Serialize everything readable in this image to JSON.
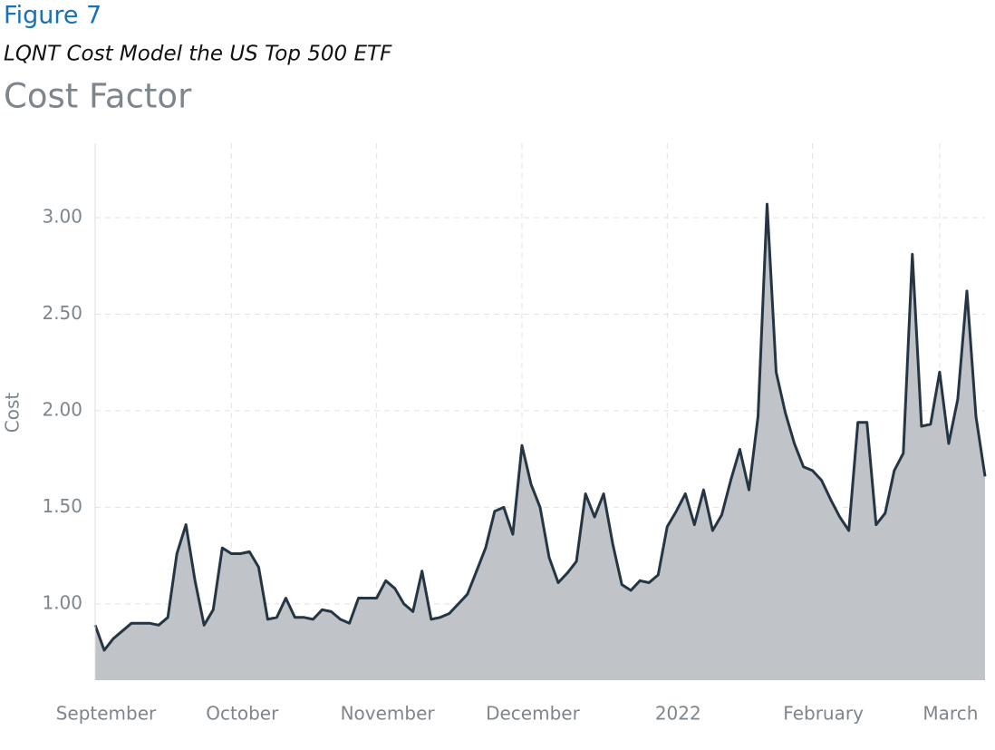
{
  "chart_data": {
    "type": "area",
    "figure_label": "Figure 7",
    "subtitle": "LQNT Cost Model the US Top 500 ETF",
    "title": "Cost Factor",
    "y_label": "Cost",
    "color": "#263544",
    "fill": "#c0c4c8",
    "grid": true,
    "categories": [
      "September",
      null,
      null,
      null,
      null,
      null,
      null,
      null,
      null,
      null,
      null,
      null,
      null,
      null,
      null,
      "October",
      null,
      null,
      null,
      null,
      null,
      null,
      null,
      null,
      null,
      null,
      null,
      null,
      null,
      null,
      null,
      "November",
      null,
      null,
      null,
      null,
      null,
      null,
      null,
      null,
      null,
      null,
      null,
      null,
      null,
      null,
      null,
      "December",
      null,
      null,
      null,
      null,
      null,
      null,
      null,
      null,
      null,
      null,
      null,
      null,
      null,
      null,
      null,
      "2022",
      null,
      null,
      null,
      null,
      null,
      null,
      null,
      null,
      null,
      null,
      null,
      null,
      null,
      null,
      null,
      "February",
      null,
      null,
      null,
      null,
      null,
      null,
      null,
      null,
      null,
      null,
      null,
      null,
      null,
      "March",
      null,
      null,
      null,
      null,
      null
    ],
    "values": [
      0.89,
      0.76,
      0.82,
      0.86,
      0.9,
      0.9,
      0.9,
      0.89,
      0.93,
      1.26,
      1.41,
      1.12,
      0.89,
      0.97,
      1.29,
      1.26,
      1.26,
      1.27,
      1.19,
      0.92,
      0.93,
      1.03,
      0.93,
      0.93,
      0.92,
      0.97,
      0.96,
      0.92,
      0.9,
      1.03,
      1.03,
      1.03,
      1.12,
      1.08,
      1.0,
      0.96,
      1.17,
      0.92,
      0.93,
      0.95,
      1.0,
      1.05,
      1.17,
      1.29,
      1.48,
      1.5,
      1.36,
      1.82,
      1.62,
      1.5,
      1.24,
      1.11,
      1.16,
      1.22,
      1.57,
      1.45,
      1.57,
      1.31,
      1.1,
      1.07,
      1.12,
      1.11,
      1.15,
      1.4,
      1.48,
      1.57,
      1.41,
      1.59,
      1.38,
      1.46,
      1.64,
      1.8,
      1.59,
      1.97,
      3.07,
      2.2,
      1.99,
      1.83,
      1.71,
      1.69,
      1.64,
      1.54,
      1.45,
      1.38,
      1.94,
      1.94,
      1.41,
      1.47,
      1.69,
      1.78,
      2.81,
      1.92,
      1.93,
      2.2,
      1.83,
      2.06,
      2.62,
      1.97,
      1.66
    ],
    "ylim": [
      0.605,
      3.385
    ],
    "yticks": [
      {
        "value": 1,
        "label": "1.00"
      },
      {
        "value": 1.5,
        "label": "1.50"
      },
      {
        "value": 2,
        "label": "2.00"
      },
      {
        "value": 2.5,
        "label": "2.50"
      },
      {
        "value": 3,
        "label": "3.00"
      }
    ]
  }
}
